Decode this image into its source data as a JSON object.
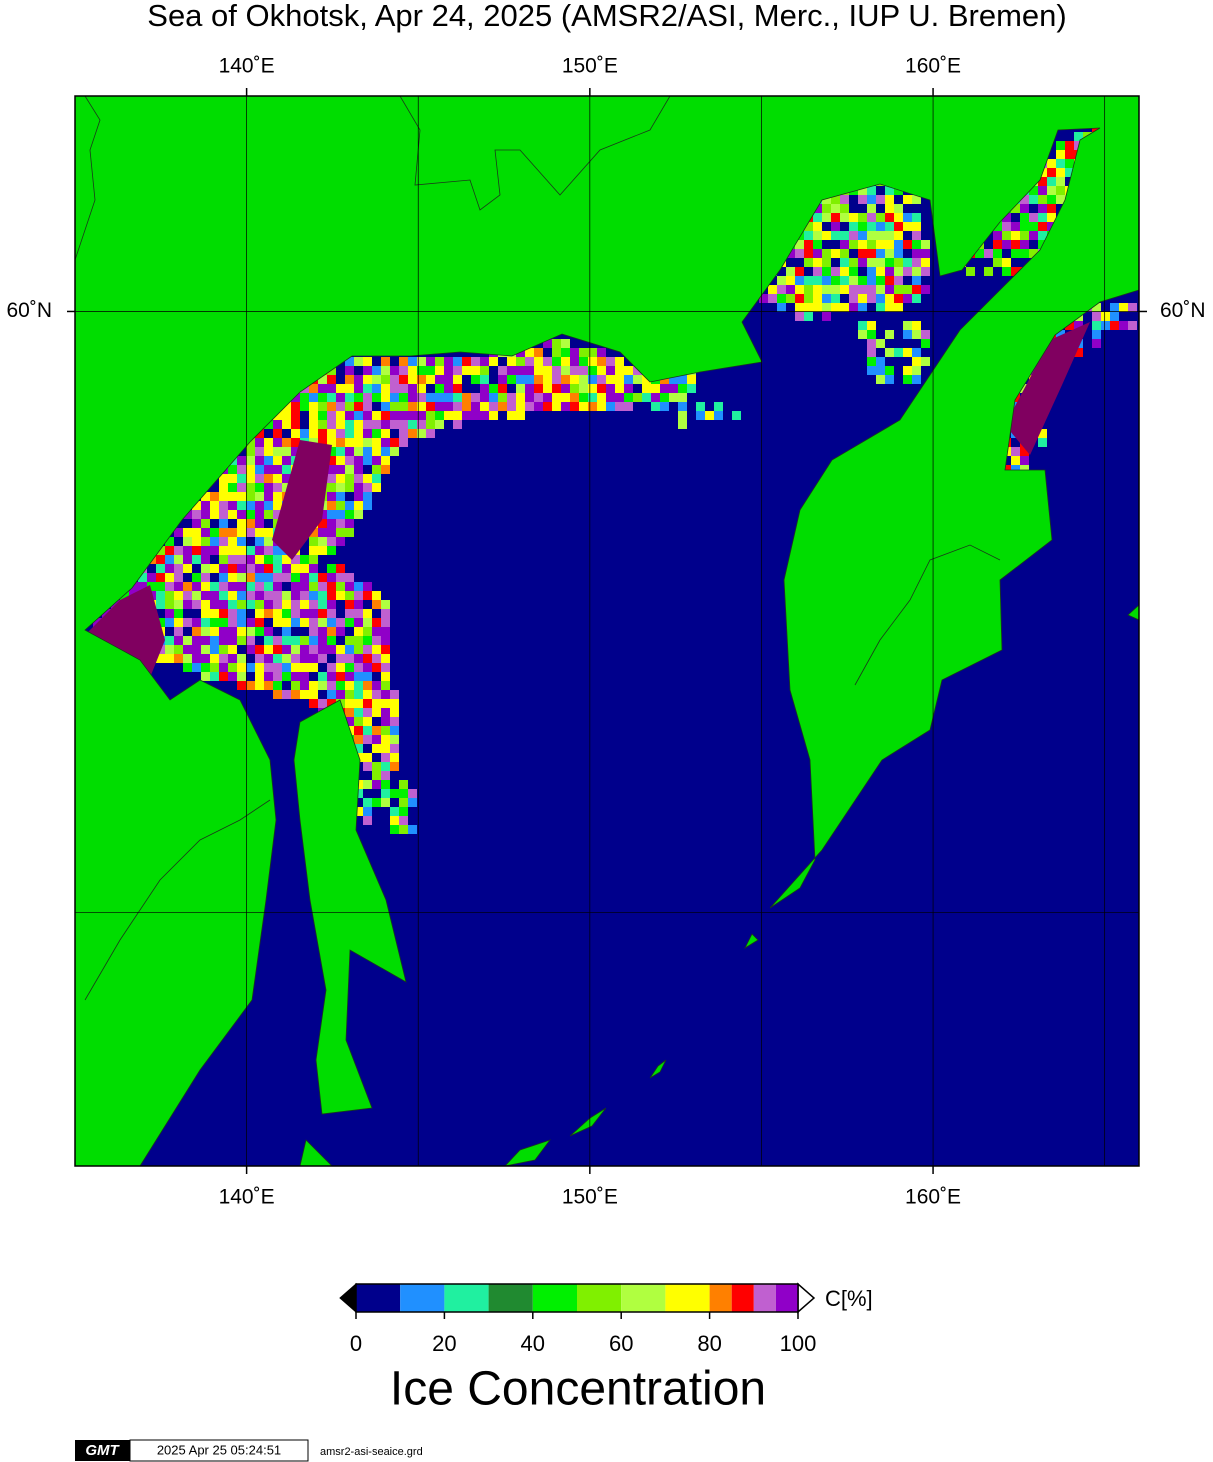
{
  "title": "Sea of Okhotsk, Apr 24, 2025 (AMSR2/ASI, Merc., IUP U. Bremen)",
  "map": {
    "xlim": [
      135,
      166
    ],
    "ylim": [
      45,
      63
    ],
    "xticks": [
      {
        "value": 140,
        "label": "140˚E"
      },
      {
        "value": 150,
        "label": "150˚E"
      },
      {
        "value": 160,
        "label": "160˚E"
      }
    ],
    "yticks": [
      {
        "value": 60,
        "label": "60˚N"
      }
    ],
    "grid_lon": [
      140,
      145,
      150,
      155,
      160,
      165
    ],
    "grid_lat": [
      50,
      60
    ]
  },
  "colorbar": {
    "label": "C[%]",
    "title": "Ice Concentration",
    "ticks": [
      0,
      20,
      40,
      60,
      80,
      100
    ],
    "segments": [
      {
        "from": 0,
        "to": 10,
        "color": "#00008c"
      },
      {
        "from": 10,
        "to": 20,
        "color": "#2090ff"
      },
      {
        "from": 20,
        "to": 30,
        "color": "#20f0a0"
      },
      {
        "from": 30,
        "to": 40,
        "color": "#208a30"
      },
      {
        "from": 40,
        "to": 50,
        "color": "#00f000"
      },
      {
        "from": 50,
        "to": 60,
        "color": "#80f000"
      },
      {
        "from": 60,
        "to": 70,
        "color": "#b0ff40"
      },
      {
        "from": 70,
        "to": 80,
        "color": "#ffff00"
      },
      {
        "from": 80,
        "to": 85,
        "color": "#ff8000"
      },
      {
        "from": 85,
        "to": 90,
        "color": "#ff0000"
      },
      {
        "from": 90,
        "to": 95,
        "color": "#c060d0"
      },
      {
        "from": 95,
        "to": 100,
        "color": "#9000c8"
      }
    ]
  },
  "footer": {
    "logo": "GMT",
    "timestamp": "2025 Apr 25 05:24:51",
    "file": "amsr2-asi-seaice.grd"
  }
}
